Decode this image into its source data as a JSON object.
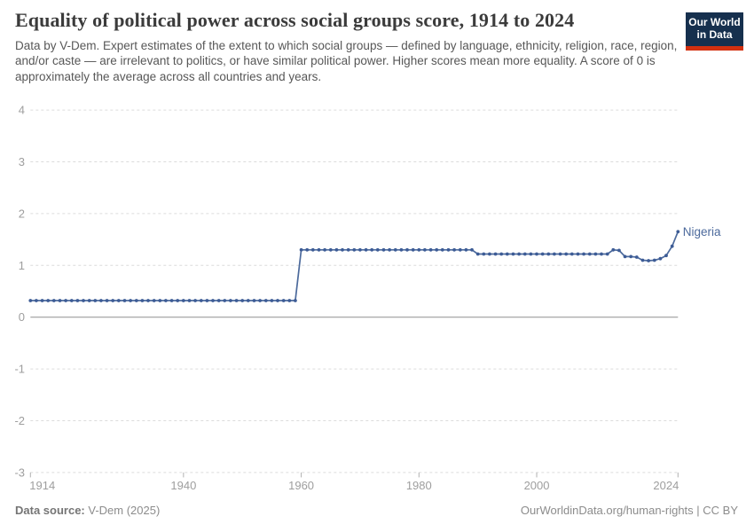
{
  "header": {
    "title": "Equality of political power across social groups score, 1914 to 2024",
    "subtitle": "Data by V-Dem. Expert estimates of the extent to which social groups — defined by language, ethnicity, religion, race, region, and/or caste — are irrelevant to politics, or have similar political power. Higher scores mean more equality. A score of 0 is approximately the average across all countries and years."
  },
  "logo": {
    "line1": "Our World",
    "line2": "in Data",
    "bg_color": "#16304e",
    "bar_color": "#d3300f"
  },
  "footer": {
    "datasource_label": "Data source:",
    "datasource_value": "V-Dem (2025)",
    "attribution": "OurWorldinData.org/human-rights | CC BY"
  },
  "chart_data": {
    "type": "line",
    "title": "Equality of political power across social groups score, 1914 to 2024",
    "xlabel": "",
    "ylabel": "",
    "xlim": [
      1914,
      2024
    ],
    "ylim": [
      -3,
      4
    ],
    "xticks": [
      1914,
      1940,
      1960,
      1980,
      2000,
      2024
    ],
    "yticks": [
      4,
      3,
      2,
      1,
      0,
      -1,
      -2,
      -3
    ],
    "grid": "horizontal-dashed",
    "legend_position": "end-of-line-label",
    "end_label": "Nigeria",
    "line_color": "#4c6a9c",
    "marker_color": "#3d5c96",
    "label_color": "#4c6a9c",
    "grid_color": "#dcdcdc",
    "zero_line_color": "#8f8f8f",
    "axis_text_color": "#9e9e9e",
    "tick_color": "#b0b0b0",
    "series": [
      {
        "name": "Nigeria",
        "start_year": 1914,
        "end_year": 2024,
        "values": [
          0.32,
          0.32,
          0.32,
          0.32,
          0.32,
          0.32,
          0.32,
          0.32,
          0.32,
          0.32,
          0.32,
          0.32,
          0.32,
          0.32,
          0.32,
          0.32,
          0.32,
          0.32,
          0.32,
          0.32,
          0.32,
          0.32,
          0.32,
          0.32,
          0.32,
          0.32,
          0.32,
          0.32,
          0.32,
          0.32,
          0.32,
          0.32,
          0.32,
          0.32,
          0.32,
          0.32,
          0.32,
          0.32,
          0.32,
          0.32,
          0.32,
          0.32,
          0.32,
          0.32,
          0.32,
          0.32,
          1.3,
          1.3,
          1.3,
          1.3,
          1.3,
          1.3,
          1.3,
          1.3,
          1.3,
          1.3,
          1.3,
          1.3,
          1.3,
          1.3,
          1.3,
          1.3,
          1.3,
          1.3,
          1.3,
          1.3,
          1.3,
          1.3,
          1.3,
          1.3,
          1.3,
          1.3,
          1.3,
          1.3,
          1.3,
          1.3,
          1.22,
          1.22,
          1.22,
          1.22,
          1.22,
          1.22,
          1.22,
          1.22,
          1.22,
          1.22,
          1.22,
          1.22,
          1.22,
          1.22,
          1.22,
          1.22,
          1.22,
          1.22,
          1.22,
          1.22,
          1.22,
          1.22,
          1.22,
          1.3,
          1.29,
          1.17,
          1.17,
          1.16,
          1.1,
          1.09,
          1.1,
          1.13,
          1.19,
          1.37,
          1.65
        ]
      }
    ]
  }
}
